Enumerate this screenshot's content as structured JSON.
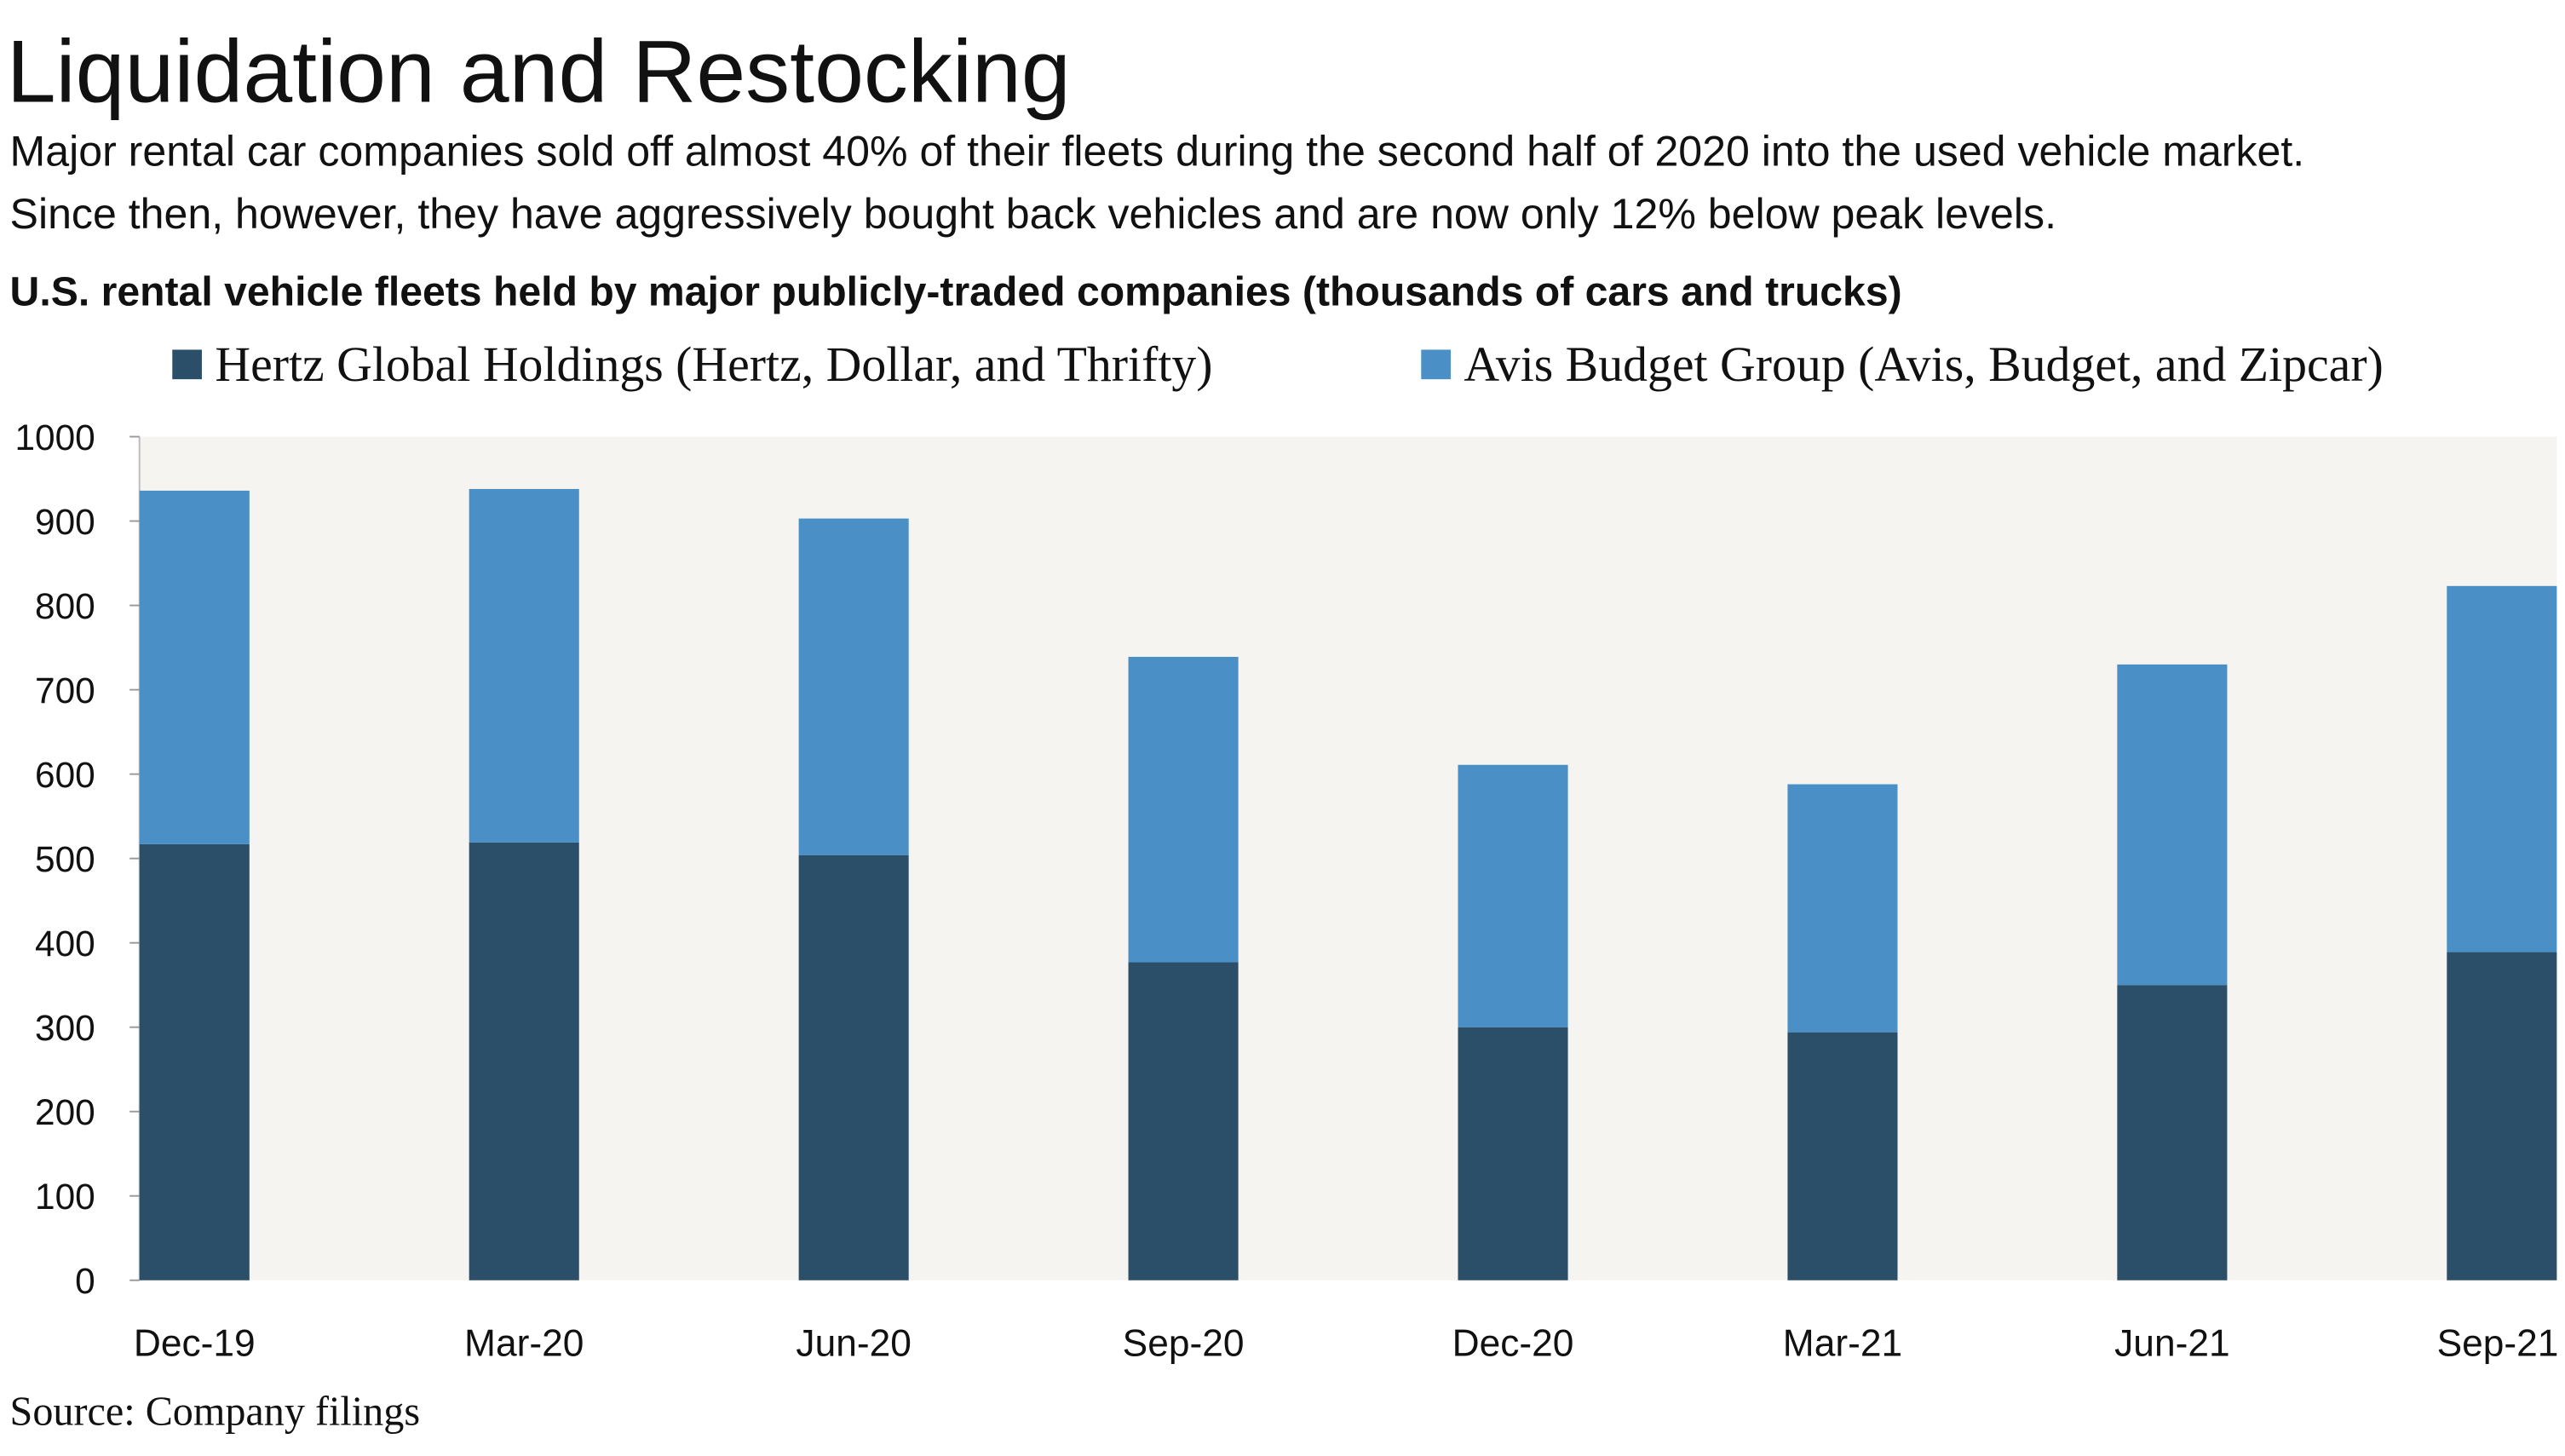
{
  "chart_data": {
    "type": "stacked-bar",
    "title": "Liquidation and Restocking",
    "subtitle": [
      "Major rental car companies sold off almost 40% of their fleets during the second half of 2020 into the used vehicle market.",
      "Since then, however, they have aggressively bought back vehicles and are now only 12% below peak levels."
    ],
    "chart_title": "U.S. rental vehicle fleets held by major publicly-traded companies (thousands of cars and trucks)",
    "source": "Source: Company filings",
    "categories": [
      "Dec-19",
      "Mar-20",
      "Jun-20",
      "Sep-20",
      "Dec-20",
      "Mar-21",
      "Jun-21",
      "Sep-21"
    ],
    "series": [
      {
        "name": "Hertz Global Holdings (Hertz, Dollar, and Thrifty)",
        "color": "#2b4f69",
        "values": [
          517,
          519,
          504,
          377,
          300,
          294,
          350,
          389
        ]
      },
      {
        "name": "Avis Budget Group (Avis, Budget, and Zipcar)",
        "color": "#4a90c6",
        "values": [
          419,
          419,
          399,
          362,
          311,
          294,
          380,
          434
        ]
      }
    ],
    "ylim": [
      0,
      1000
    ],
    "yticks": [
      0,
      100,
      200,
      300,
      400,
      500,
      600,
      700,
      800,
      900,
      1000
    ],
    "plot_background": "#f5f4f0"
  }
}
